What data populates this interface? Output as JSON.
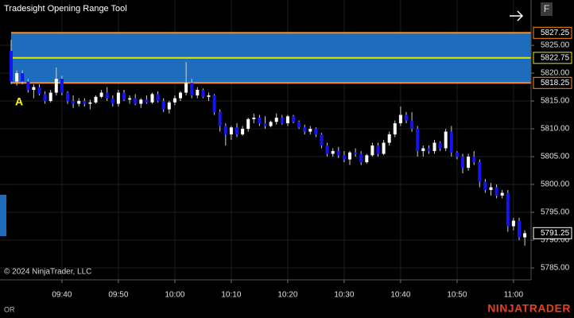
{
  "footer_tab": "OR",
  "brand": "NINJATRADER",
  "button": "F",
  "copyright": "© 2024 NinjaTrader, LLC",
  "chart_data": {
    "type": "candlestick",
    "title": "Tradesight Opening Range Tool",
    "marker": "A",
    "categories": [
      null,
      null,
      null,
      null,
      null,
      null,
      null,
      null,
      null,
      "09:40",
      null,
      null,
      null,
      null,
      null,
      null,
      null,
      null,
      null,
      "09:50",
      null,
      null,
      null,
      null,
      null,
      null,
      null,
      null,
      null,
      "10:00",
      null,
      null,
      null,
      null,
      null,
      null,
      null,
      null,
      null,
      "10:10",
      null,
      null,
      null,
      null,
      null,
      null,
      null,
      null,
      null,
      "10:20",
      null,
      null,
      null,
      null,
      null,
      null,
      null,
      null,
      null,
      "10:30",
      null,
      null,
      null,
      null,
      null,
      null,
      null,
      null,
      null,
      "10:40",
      null,
      null,
      null,
      null,
      null,
      null,
      null,
      null,
      null,
      "10:50",
      null,
      null,
      null,
      null,
      null,
      null,
      null,
      null,
      null,
      "11:00",
      null,
      null
    ],
    "open": [
      5824,
      5818.5,
      5820,
      5818.5,
      5817,
      5817.5,
      5816.25,
      5815,
      5816.5,
      5819,
      5816.5,
      5815,
      5814.5,
      5815,
      5814.5,
      5814.75,
      5815.75,
      5816.5,
      5815.5,
      5814.5,
      5816.5,
      5815.25,
      5815.5,
      5814.5,
      5815.25,
      5814.75,
      5816.25,
      5815,
      5813.5,
      5814.75,
      5815.5,
      5816.5,
      5818.25,
      5816,
      5817,
      5815.75,
      5816,
      5813,
      5810.5,
      5809,
      5810.25,
      5809,
      5810,
      5811.75,
      5812,
      5811,
      5810.5,
      5811.25,
      5812,
      5811,
      5812.25,
      5811.25,
      5810.25,
      5809.5,
      5810,
      5809,
      5807,
      5805.5,
      5806,
      5805.25,
      5804.5,
      5805.75,
      5805.5,
      5804,
      5805.25,
      5807,
      5805.5,
      5807.5,
      5809,
      5811,
      5812.5,
      5811.5,
      5810,
      5806,
      5806.5,
      5806,
      5807.5,
      5806.5,
      5809.5,
      5805.75,
      5805,
      5803,
      5805,
      5804,
      5800.5,
      5799,
      5799.5,
      5798,
      5798.5,
      5792.5,
      5793.5,
      5790.5
    ],
    "high": [
      5826,
      5820.5,
      5820.5,
      5819,
      5818,
      5818,
      5816.75,
      5817,
      5821,
      5819.5,
      5816.75,
      5816,
      5815.5,
      5815.5,
      5815.25,
      5816,
      5817,
      5817.5,
      5816,
      5817,
      5817,
      5816,
      5816.25,
      5815.5,
      5816,
      5816.5,
      5816.75,
      5815.5,
      5815,
      5816,
      5816.75,
      5822,
      5819,
      5817.5,
      5817.25,
      5816.5,
      5816.25,
      5813.5,
      5811,
      5810.5,
      5811,
      5810.5,
      5812,
      5812.75,
      5812.5,
      5812.25,
      5811.5,
      5812.75,
      5812.5,
      5812.5,
      5812.5,
      5811.5,
      5810.75,
      5810.5,
      5810.25,
      5809.25,
      5807.5,
      5806.5,
      5806.75,
      5806,
      5806,
      5806.5,
      5806,
      5805.5,
      5807.5,
      5807.5,
      5808,
      5809.5,
      5811.5,
      5814,
      5813,
      5813,
      5810.5,
      5807,
      5807,
      5808,
      5807.75,
      5810,
      5810.5,
      5806,
      5805.5,
      5805.5,
      5806,
      5804.5,
      5801,
      5800.25,
      5800,
      5799,
      5799,
      5794,
      5794,
      5791.75
    ],
    "low": [
      5818,
      5817.75,
      5818,
      5816.5,
      5815.5,
      5816,
      5814.5,
      5814.75,
      5816,
      5816,
      5814.5,
      5813.75,
      5814,
      5814,
      5813.5,
      5814.5,
      5815.5,
      5815,
      5814,
      5814,
      5815,
      5814.5,
      5814.25,
      5813.75,
      5814.5,
      5814.5,
      5814.75,
      5813,
      5812.75,
      5814.25,
      5815,
      5816,
      5815.5,
      5815.5,
      5815.5,
      5815,
      5812.5,
      5809.5,
      5807,
      5808,
      5808.5,
      5808.75,
      5809.5,
      5811,
      5810.5,
      5810,
      5810.25,
      5810.75,
      5810.75,
      5810.5,
      5811,
      5810,
      5809,
      5809,
      5808.5,
      5806.5,
      5805,
      5805,
      5804.75,
      5804,
      5803.5,
      5805,
      5803.5,
      5803.75,
      5805,
      5805,
      5805.25,
      5807,
      5808.5,
      5810.5,
      5811,
      5809.5,
      5805,
      5805,
      5805.5,
      5805.5,
      5806,
      5806,
      5805,
      5804.5,
      5802,
      5802.5,
      5803.5,
      5799.5,
      5798.5,
      5798,
      5797.5,
      5797.5,
      5791.5,
      5791.75,
      5790,
      5789
    ],
    "close": [
      5818.5,
      5820,
      5818.5,
      5817,
      5817.5,
      5816.25,
      5815,
      5816.5,
      5819,
      5816.5,
      5815,
      5814.5,
      5815,
      5814.5,
      5814.75,
      5815.75,
      5816.5,
      5815.5,
      5814.5,
      5816.5,
      5815.25,
      5815.5,
      5814.5,
      5815.25,
      5814.75,
      5816.25,
      5815,
      5813.5,
      5814.75,
      5815.5,
      5816.5,
      5818.25,
      5816,
      5817,
      5815.75,
      5816,
      5813,
      5810.5,
      5809,
      5810.25,
      5809,
      5810,
      5811.75,
      5812,
      5811,
      5810.5,
      5811.25,
      5812,
      5811,
      5812.25,
      5811.25,
      5810.25,
      5809.5,
      5810,
      5809,
      5807,
      5805.5,
      5806,
      5805.25,
      5804.5,
      5805.75,
      5805.5,
      5804,
      5805.25,
      5807,
      5805.5,
      5807.5,
      5809,
      5811,
      5812.5,
      5811.5,
      5810,
      5806,
      5806.5,
      5806,
      5807.5,
      5806.5,
      5809.5,
      5805.75,
      5805,
      5803,
      5805,
      5804,
      5800.5,
      5799,
      5799.5,
      5798,
      5798.5,
      5792.5,
      5793.5,
      5790.5,
      5791.25
    ],
    "up_color": "#ffffff",
    "down_color": "#1414f0",
    "wick_color": "#cfcfcf",
    "ylim": [
      5783.15,
      5833.15
    ],
    "yticks": [
      {
        "value": 5825,
        "label": "5825.00"
      },
      {
        "value": 5820,
        "label": "5820.00"
      },
      {
        "value": 5815,
        "label": "5815.00"
      },
      {
        "value": 5810,
        "label": "5810.00"
      },
      {
        "value": 5805,
        "label": "5805.00"
      },
      {
        "value": 5800,
        "label": "5800.00"
      },
      {
        "value": 5795,
        "label": "5795.00"
      },
      {
        "value": 5790,
        "label": "5790.00"
      },
      {
        "value": 5785,
        "label": "5785.00"
      }
    ],
    "grid": true,
    "opening_range": {
      "high": 5827.25,
      "mid": 5822.75,
      "low": 5818.25,
      "fill": "#1e6cbc",
      "edge_color": "#ff8c1a",
      "mid_color": "#e6e600"
    },
    "last_price": 5791.25
  }
}
